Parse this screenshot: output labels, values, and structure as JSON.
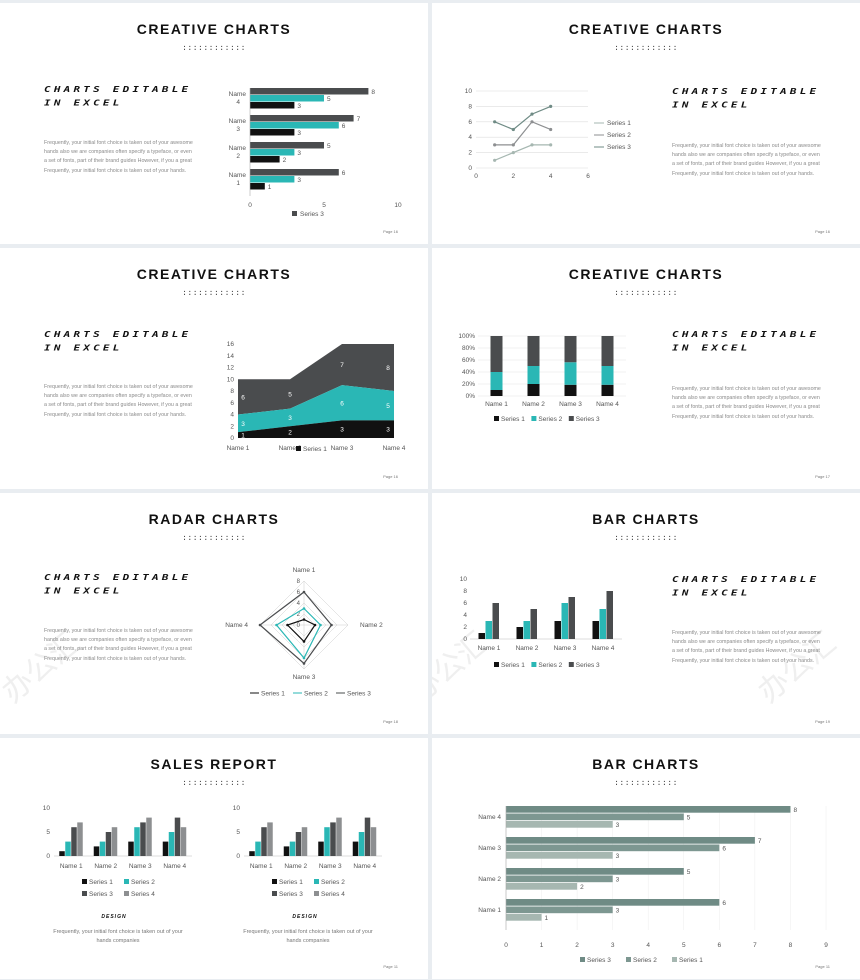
{
  "colors": {
    "black": "#111111",
    "teal": "#2ab7b5",
    "dark": "#4a4c4e",
    "gray": "#8d8f91",
    "sage": "#6f8b85",
    "sage_mid": "#7d9791",
    "sage_light": "#a6b7b1"
  },
  "slides": [
    {
      "title": "CREATIVE CHARTS",
      "dots": "::::::::::::",
      "big1": "CHARTS EDITABLE",
      "big2": "IN EXCEL",
      "para": "Frequently, your initial font choice is taken out of your awesome hands also we are companies often specify a typeface, or even a set of fonts, part of their brand guides However, if you a great Frequently, your initial font choice is taken out of your hands.",
      "page": "Page  16"
    },
    {
      "title": "CREATIVE CHARTS",
      "dots": "::::::::::::",
      "big1": "CHARTS EDITABLE",
      "big2": "IN EXCEL",
      "para": "Frequently, your initial font choice is taken out of your awesome hands also we are companies often specify a typeface, or even a set of fonts, part of their brand guides However, if you a great Frequently, your initial font choice is taken out of your hands.",
      "page": "Page  16"
    },
    {
      "title": "CREATIVE CHARTS",
      "dots": "::::::::::::",
      "big1": "CHARTS EDITABLE",
      "big2": "IN EXCEL",
      "para": "Frequently, your initial font choice is taken out of your awesome hands also we are companies often specify a typeface, or even a set of fonts, part of their brand guides However, if you a great Frequently, your initial font choice is taken out of your hands.",
      "page": "Page  16"
    },
    {
      "title": "CREATIVE CHARTS",
      "dots": "::::::::::::",
      "big1": "CHARTS EDITABLE",
      "big2": "IN EXCEL",
      "para": "Frequently, your initial font choice is taken out of your awesome hands also we are companies often specify a typeface, or even a set of fonts, part of their brand guides However, if you a great Frequently, your initial font choice is taken out of your hands.",
      "page": "Page  17"
    },
    {
      "title": "RADAR CHARTS",
      "dots": "::::::::::::",
      "big1": "CHARTS EDITABLE",
      "big2": "IN EXCEL",
      "para": "Frequently, your initial font choice is taken out of your awesome hands also we are companies often specify a typeface, or even a set of fonts, part of their brand guides However, if you a great Frequently, your initial font choice is taken out of your hands.",
      "page": "Page  18"
    },
    {
      "title": "BAR CHARTS",
      "dots": "::::::::::::",
      "big1": "CHARTS EDITABLE",
      "big2": "IN EXCEL",
      "para": "Frequently, your initial font choice is taken out of your awesome hands also we are companies often specify a typeface, or even a set of fonts, part of their brand guides However, if you a great Frequently, your initial font choice is taken out of your hands.",
      "page": "Page  19"
    },
    {
      "title": "SALES REPORT",
      "dots": "::::::::::::",
      "logo": "DESIGN",
      "caption": "Frequently, your initial font choice is taken out of your hands companies",
      "page": "Page  11"
    },
    {
      "title": "BAR CHARTS",
      "dots": "::::::::::::",
      "page": "Page  11"
    }
  ],
  "watermark": "办公汇",
  "chart_data": [
    {
      "type": "bar",
      "orientation": "horizontal",
      "categories": [
        "Name 1",
        "Name 2",
        "Name 3",
        "Name 4"
      ],
      "series": [
        {
          "name": "Series 1",
          "values": [
            1,
            2,
            3,
            3
          ]
        },
        {
          "name": "Series 2",
          "values": [
            3,
            3,
            6,
            5
          ]
        },
        {
          "name": "Series 3",
          "values": [
            6,
            5,
            7,
            8
          ]
        }
      ],
      "legend": [
        "Series 3"
      ],
      "xlim": [
        0,
        10
      ],
      "xticks": [
        "0",
        "5",
        "10"
      ]
    },
    {
      "type": "line",
      "x": [
        1,
        2,
        3,
        4
      ],
      "series": [
        {
          "name": "Series 1",
          "values": [
            1,
            2,
            3,
            3
          ]
        },
        {
          "name": "Series 2",
          "values": [
            3,
            3,
            6,
            5
          ]
        },
        {
          "name": "Series 3",
          "values": [
            6,
            5,
            7,
            8
          ]
        }
      ],
      "ylim": [
        0,
        10
      ],
      "xlim": [
        0,
        6
      ],
      "yticks": [
        "0",
        "2",
        "4",
        "6",
        "8",
        "10"
      ],
      "xticks": [
        "0",
        "2",
        "4",
        "6"
      ],
      "legend_position": "right"
    },
    {
      "type": "area",
      "stacked": true,
      "categories": [
        "Name 1",
        "Name 2",
        "Name 3",
        "Name 4"
      ],
      "series": [
        {
          "name": "Series 1",
          "values": [
            1,
            2,
            3,
            3
          ]
        },
        {
          "name": "Series 2",
          "values": [
            3,
            3,
            6,
            5
          ]
        },
        {
          "name": "Series 3",
          "values": [
            6,
            5,
            7,
            8
          ]
        }
      ],
      "legend": [
        "Series 1"
      ],
      "ylim": [
        0,
        16
      ],
      "yticks": [
        "0",
        "2",
        "4",
        "6",
        "8",
        "10",
        "12",
        "14",
        "16"
      ]
    },
    {
      "type": "bar",
      "stacked": "percent",
      "categories": [
        "Name 1",
        "Name 2",
        "Name 3",
        "Name 4"
      ],
      "series": [
        {
          "name": "Series 1",
          "values": [
            1,
            2,
            3,
            3
          ]
        },
        {
          "name": "Series 2",
          "values": [
            3,
            3,
            6,
            5
          ]
        },
        {
          "name": "Series 3",
          "values": [
            6,
            5,
            7,
            8
          ]
        }
      ],
      "yticks": [
        "0%",
        "20%",
        "40%",
        "60%",
        "80%",
        "100%"
      ],
      "legend_position": "bottom"
    },
    {
      "type": "radar",
      "categories": [
        "Name 1",
        "Name 2",
        "Name 3",
        "Name 4"
      ],
      "series": [
        {
          "name": "Series 1",
          "values": [
            1,
            2,
            3,
            3
          ]
        },
        {
          "name": "Series 2",
          "values": [
            3,
            3,
            6,
            5
          ]
        },
        {
          "name": "Series 3",
          "values": [
            6,
            5,
            7,
            8
          ]
        }
      ],
      "rticks": [
        "0",
        "2",
        "4",
        "6",
        "8"
      ],
      "rlim": [
        0,
        8
      ],
      "legend_position": "bottom"
    },
    {
      "type": "bar",
      "categories": [
        "Name 1",
        "Name 2",
        "Name 3",
        "Name 4"
      ],
      "series": [
        {
          "name": "Series 1",
          "values": [
            1,
            2,
            3,
            3
          ]
        },
        {
          "name": "Series 2",
          "values": [
            3,
            3,
            6,
            5
          ]
        },
        {
          "name": "Series 3",
          "values": [
            6,
            5,
            7,
            8
          ]
        }
      ],
      "ylim": [
        0,
        10
      ],
      "yticks": [
        "0",
        "2",
        "4",
        "6",
        "8",
        "10"
      ],
      "legend_position": "bottom"
    },
    {
      "type": "bar",
      "categories": [
        "Name 1",
        "Name 2",
        "Name 3",
        "Name 4"
      ],
      "series": [
        {
          "name": "Series 1",
          "values": [
            1,
            2,
            3,
            3
          ]
        },
        {
          "name": "Series 2",
          "values": [
            3,
            3,
            6,
            5
          ]
        },
        {
          "name": "Series 3",
          "values": [
            6,
            5,
            7,
            8
          ]
        },
        {
          "name": "Series 4",
          "values": [
            7,
            6,
            8,
            6
          ]
        }
      ],
      "ylim": [
        0,
        10
      ],
      "yticks": [
        "0",
        "5",
        "10"
      ],
      "legend_position": "bottom"
    },
    {
      "type": "bar",
      "categories": [
        "Name 1",
        "Name 2",
        "Name 3",
        "Name 4"
      ],
      "series": [
        {
          "name": "Series 1",
          "values": [
            1,
            2,
            3,
            3
          ]
        },
        {
          "name": "Series 2",
          "values": [
            3,
            3,
            6,
            5
          ]
        },
        {
          "name": "Series 3",
          "values": [
            6,
            5,
            7,
            8
          ]
        },
        {
          "name": "Series 4",
          "values": [
            7,
            6,
            8,
            6
          ]
        }
      ],
      "ylim": [
        0,
        10
      ],
      "yticks": [
        "0",
        "5",
        "10"
      ],
      "legend_position": "bottom"
    },
    {
      "type": "bar",
      "orientation": "horizontal",
      "categories": [
        "Name 1",
        "Name 2",
        "Name 3",
        "Name 4"
      ],
      "series": [
        {
          "name": "Series 1",
          "values": [
            1,
            2,
            3,
            3
          ]
        },
        {
          "name": "Series 2",
          "values": [
            3,
            3,
            6,
            5
          ]
        },
        {
          "name": "Series 3",
          "values": [
            6,
            5,
            7,
            8
          ]
        }
      ],
      "xlim": [
        0,
        9
      ],
      "xticks": [
        "0",
        "1",
        "2",
        "3",
        "4",
        "5",
        "6",
        "7",
        "8",
        "9"
      ],
      "legend": [
        "Series 3",
        "Series 2",
        "Series 1"
      ],
      "legend_position": "bottom"
    }
  ]
}
